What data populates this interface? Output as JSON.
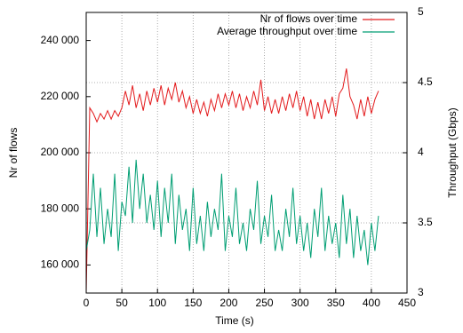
{
  "chart_data": {
    "type": "line",
    "xlabel": "Time (s)",
    "ylabel": "Nr of flows",
    "y2label": "Throughput (Gbps)",
    "x": [
      0,
      5,
      10,
      15,
      20,
      25,
      30,
      35,
      40,
      45,
      50,
      55,
      60,
      65,
      70,
      75,
      80,
      85,
      90,
      95,
      100,
      105,
      110,
      115,
      120,
      125,
      130,
      135,
      140,
      145,
      150,
      155,
      160,
      165,
      170,
      175,
      180,
      185,
      190,
      195,
      200,
      205,
      210,
      215,
      220,
      225,
      230,
      235,
      240,
      245,
      250,
      255,
      260,
      265,
      270,
      275,
      280,
      285,
      290,
      295,
      300,
      305,
      310,
      315,
      320,
      325,
      330,
      335,
      340,
      345,
      350,
      355,
      360,
      365,
      370,
      375,
      380,
      385,
      390,
      395,
      400,
      405,
      410
    ],
    "series": [
      {
        "name": "Nr of flows over time",
        "color": "#e31a1c",
        "axis": "y",
        "values": [
          150000,
          216000,
          214000,
          211000,
          214000,
          212000,
          215000,
          212000,
          215000,
          213000,
          216000,
          222000,
          217000,
          224000,
          216000,
          221000,
          215000,
          222000,
          217000,
          223000,
          218000,
          224000,
          217000,
          223000,
          219000,
          225000,
          218000,
          222000,
          216000,
          220000,
          214000,
          219000,
          214000,
          218000,
          213000,
          219000,
          215000,
          221000,
          216000,
          221000,
          217000,
          222000,
          216000,
          221000,
          215000,
          220000,
          216000,
          222000,
          217000,
          226000,
          215000,
          220000,
          214000,
          219000,
          214000,
          220000,
          215000,
          221000,
          216000,
          222000,
          215000,
          220000,
          213000,
          219000,
          212000,
          218000,
          212000,
          219000,
          214000,
          220000,
          213000,
          221000,
          223000,
          230000,
          220000,
          217000,
          212000,
          219000,
          213000,
          220000,
          214000,
          219000,
          222000
        ]
      },
      {
        "name": "Average throughput over time",
        "color": "#009e73",
        "axis": "y2",
        "values": [
          3.3,
          3.45,
          3.85,
          3.4,
          3.75,
          3.35,
          3.6,
          3.4,
          3.85,
          3.3,
          3.65,
          3.55,
          3.9,
          3.5,
          3.95,
          3.6,
          3.85,
          3.5,
          3.7,
          3.45,
          3.8,
          3.4,
          3.75,
          3.5,
          3.85,
          3.35,
          3.7,
          3.45,
          3.6,
          3.3,
          3.75,
          3.35,
          3.55,
          3.3,
          3.65,
          3.4,
          3.6,
          3.45,
          3.85,
          3.3,
          3.55,
          3.4,
          3.75,
          3.35,
          3.5,
          3.3,
          3.6,
          3.45,
          3.8,
          3.35,
          3.55,
          3.4,
          3.7,
          3.3,
          3.45,
          3.3,
          3.6,
          3.4,
          3.75,
          3.35,
          3.55,
          3.3,
          3.5,
          3.25,
          3.6,
          3.4,
          3.75,
          3.3,
          3.55,
          3.35,
          3.5,
          3.25,
          3.7,
          3.35,
          3.6,
          3.25,
          3.55,
          3.3,
          3.45,
          3.2,
          3.5,
          3.3,
          3.55
        ]
      }
    ],
    "xlim": [
      0,
      450
    ],
    "xticks": [
      0,
      50,
      100,
      150,
      200,
      250,
      300,
      350,
      400,
      450
    ],
    "ylim": [
      150000,
      250000
    ],
    "yticks": [
      {
        "value": 160000,
        "label": "160 000"
      },
      {
        "value": 180000,
        "label": "180 000"
      },
      {
        "value": 200000,
        "label": "200 000"
      },
      {
        "value": 220000,
        "label": "220 000"
      },
      {
        "value": 240000,
        "label": "240 000"
      }
    ],
    "y2lim": [
      3,
      5
    ],
    "y2ticks": [
      3,
      3.5,
      4,
      4.5,
      5
    ],
    "grid": true,
    "legend": "top-right"
  }
}
